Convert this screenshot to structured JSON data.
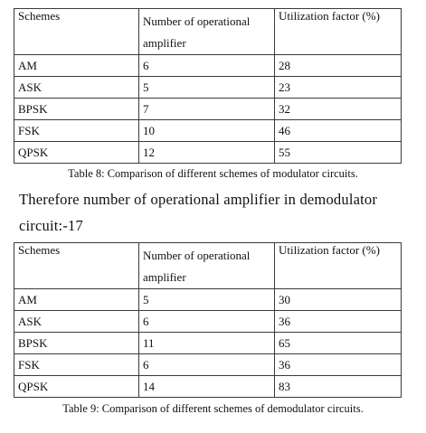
{
  "table1": {
    "headers": [
      "Schemes",
      "Number of operational amplifier",
      "Utilization factor (%)"
    ],
    "rows": [
      [
        "AM",
        "6",
        "28"
      ],
      [
        "ASK",
        "5",
        "23"
      ],
      [
        "BPSK",
        "7",
        "32"
      ],
      [
        "FSK",
        "10",
        "46"
      ],
      [
        "QPSK",
        "12",
        "55"
      ]
    ],
    "caption": "Table 8: Comparison of different schemes of modulator circuits."
  },
  "paragraph": {
    "line1": "Therefore number of operational amplifier in demodulator",
    "line2": "circuit:-17"
  },
  "table2": {
    "headers": [
      "Schemes",
      "Number of operational amplifier",
      "Utilization factor (%)"
    ],
    "rows": [
      [
        "AM",
        "5",
        "30"
      ],
      [
        "ASK",
        "6",
        "36"
      ],
      [
        "BPSK",
        "11",
        "65"
      ],
      [
        "FSK",
        "6",
        "36"
      ],
      [
        "QPSK",
        "14",
        "83"
      ]
    ],
    "caption": "Table 9: Comparison of different schemes of demodulator circuits."
  }
}
